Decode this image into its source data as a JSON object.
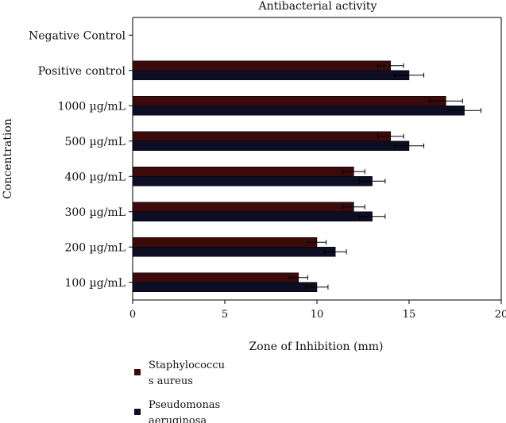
{
  "chart_data": {
    "type": "bar",
    "orientation": "horizontal",
    "title": "Antibacterial activity",
    "xlabel": "Zone of Inhibition (mm)",
    "ylabel": "Concentration",
    "xlim": [
      0,
      20
    ],
    "xticks": [
      0,
      5,
      10,
      15,
      20
    ],
    "categories": [
      "Negative Control",
      "Positive control",
      "1000 µg/mL",
      "500 µg/mL",
      "400 µg/mL",
      "300 µg/mL",
      "200 µg/mL",
      "100 µg/mL"
    ],
    "series": [
      {
        "name": "Staphylococcus aureus",
        "legend_lines": [
          "Staphylococcu",
          "s aureus"
        ],
        "color": "#3b0a0a",
        "values": [
          0,
          14,
          17,
          14,
          12,
          12,
          10,
          9
        ],
        "errors": [
          0,
          0.7,
          0.9,
          0.7,
          0.6,
          0.6,
          0.5,
          0.5
        ]
      },
      {
        "name": "Pseudomonas aeruginosa",
        "legend_lines": [
          "Pseudomonas",
          "aeruginosa"
        ],
        "color": "#0d0d24",
        "values": [
          0,
          15,
          18,
          15,
          13,
          13,
          11,
          10
        ],
        "errors": [
          0,
          0.8,
          0.9,
          0.8,
          0.7,
          0.7,
          0.6,
          0.6
        ]
      }
    ],
    "grid": false,
    "legend": "bottom-left"
  }
}
